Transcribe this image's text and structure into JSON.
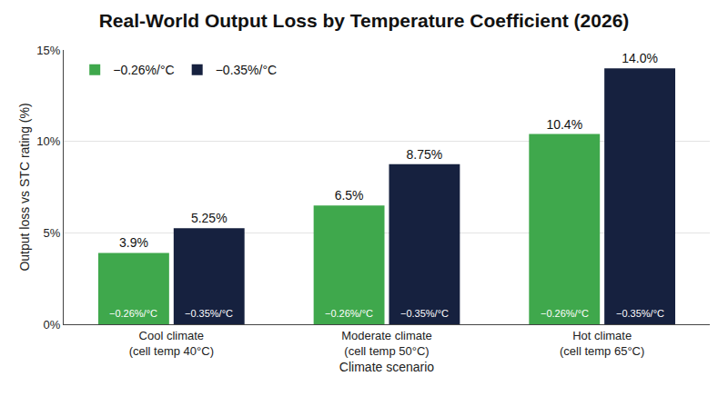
{
  "chart_data": {
    "type": "bar",
    "title": "Real-World Output Loss by Temperature Coefficient (2026)",
    "x_label": "Climate scenario",
    "y_label": "Output loss vs STC rating (%)",
    "categories": [
      "Cool climate (cell temp 40°C)",
      "Moderate climate (cell temp 50°C)",
      "Hot climate (cell temp 65°C)"
    ],
    "series": [
      {
        "name": "−0.26%/°C",
        "color": "#3fa84c",
        "values": [
          3.9,
          6.5,
          10.4
        ],
        "value_labels": [
          "3.9%",
          "6.5%",
          "10.4%"
        ]
      },
      {
        "name": "−0.35%/°C",
        "color": "#16213f",
        "values": [
          5.25,
          8.75,
          14.0
        ],
        "value_labels": [
          "5.25%",
          "8.75%",
          "14.0%"
        ]
      }
    ],
    "ylim": [
      0,
      15
    ],
    "yticks": [
      {
        "value": 0,
        "label": "0%"
      },
      {
        "value": 5,
        "label": "5%"
      },
      {
        "value": 10,
        "label": "10%"
      },
      {
        "value": 15,
        "label": "15%"
      }
    ],
    "grid": true,
    "legend": "upper left",
    "data_labels": true
  }
}
